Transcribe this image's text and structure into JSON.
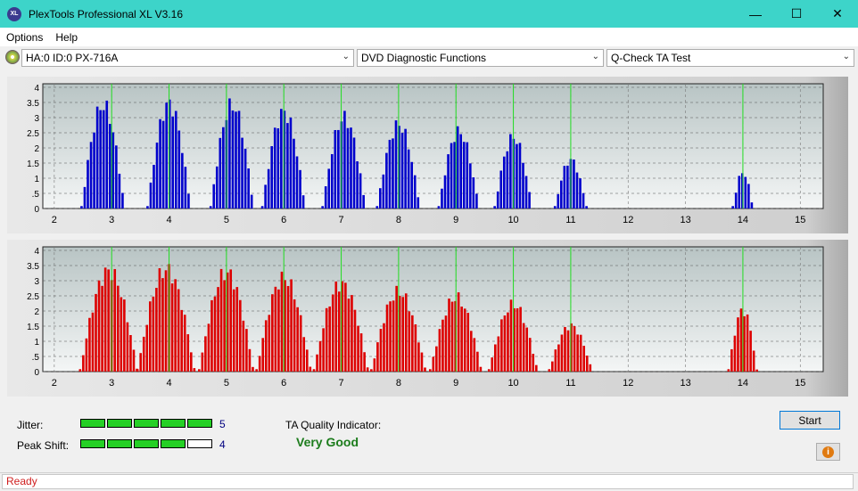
{
  "window": {
    "title": "PlexTools Professional XL V3.16",
    "icon_text": "XL",
    "minimize": "—",
    "maximize": "☐",
    "close": "✕"
  },
  "menu": {
    "items": [
      "Options",
      "Help"
    ]
  },
  "toolbar": {
    "drive": "HA:0 ID:0  PX-716A",
    "function": "DVD Diagnostic Functions",
    "test": "Q-Check TA Test"
  },
  "charts": {
    "x_ticks": [
      "2",
      "3",
      "4",
      "5",
      "6",
      "7",
      "8",
      "9",
      "10",
      "11",
      "12",
      "13",
      "14",
      "15"
    ],
    "y_ticks": [
      "0",
      "0.5",
      "1",
      "1.5",
      "2",
      "2.5",
      "3",
      "3.5",
      "4"
    ]
  },
  "chart_data": [
    {
      "type": "bar",
      "series": [
        {
          "color": "#0000cc"
        }
      ],
      "xlim": [
        1.8,
        15.4
      ],
      "ylim": [
        0,
        4
      ],
      "green_markers": [
        3,
        4,
        5,
        6,
        7,
        8,
        9,
        10,
        11,
        14
      ],
      "peaks": [
        {
          "center": 2.85,
          "height": 3.7,
          "width": 0.75
        },
        {
          "center": 4.0,
          "height": 3.75,
          "width": 0.75
        },
        {
          "center": 5.1,
          "height": 3.7,
          "width": 0.75
        },
        {
          "center": 6.0,
          "height": 3.45,
          "width": 0.75
        },
        {
          "center": 7.05,
          "height": 3.25,
          "width": 0.75
        },
        {
          "center": 8.0,
          "height": 3.0,
          "width": 0.75
        },
        {
          "center": 9.05,
          "height": 2.75,
          "width": 0.7
        },
        {
          "center": 10.0,
          "height": 2.55,
          "width": 0.65
        },
        {
          "center": 11.0,
          "height": 1.75,
          "width": 0.55
        },
        {
          "center": 14.0,
          "height": 1.3,
          "width": 0.35
        }
      ]
    },
    {
      "type": "bar",
      "series": [
        {
          "color": "#dd0000"
        }
      ],
      "xlim": [
        1.8,
        15.4
      ],
      "ylim": [
        0,
        4
      ],
      "green_markers": [
        3,
        4,
        5,
        6,
        7,
        8,
        9,
        10,
        11,
        14
      ],
      "peaks": [
        {
          "center": 2.95,
          "height": 3.6,
          "width": 1.0
        },
        {
          "center": 3.95,
          "height": 3.65,
          "width": 1.0
        },
        {
          "center": 5.0,
          "height": 3.55,
          "width": 0.95
        },
        {
          "center": 6.0,
          "height": 3.35,
          "width": 0.95
        },
        {
          "center": 7.0,
          "height": 3.15,
          "width": 0.95
        },
        {
          "center": 8.0,
          "height": 2.85,
          "width": 0.95
        },
        {
          "center": 9.0,
          "height": 2.65,
          "width": 0.9
        },
        {
          "center": 10.0,
          "height": 2.4,
          "width": 0.85
        },
        {
          "center": 11.0,
          "height": 1.65,
          "width": 0.75
        },
        {
          "center": 14.0,
          "height": 2.2,
          "width": 0.5
        }
      ]
    }
  ],
  "results": {
    "jitter_label": "Jitter:",
    "jitter_value": "5",
    "jitter_level": 5,
    "peakshift_label": "Peak Shift:",
    "peakshift_value": "4",
    "peakshift_level": 4,
    "ta_label": "TA Quality Indicator:",
    "ta_value": "Very Good",
    "start_label": "Start"
  },
  "status": {
    "text": "Ready"
  }
}
